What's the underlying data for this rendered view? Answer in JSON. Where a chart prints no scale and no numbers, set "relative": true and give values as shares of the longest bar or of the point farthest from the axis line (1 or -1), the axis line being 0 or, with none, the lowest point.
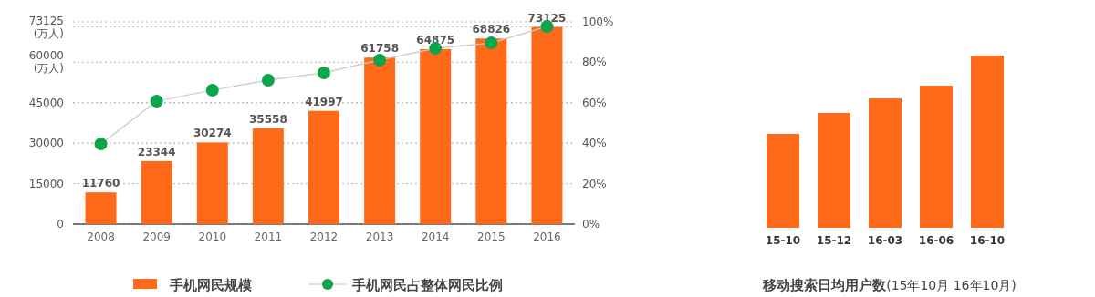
{
  "chart_data": [
    {
      "type": "bar",
      "categories": [
        "2008",
        "2009",
        "2010",
        "2011",
        "2012",
        "2013",
        "2014",
        "2015",
        "2016"
      ],
      "series": [
        {
          "name": "手机网民规模",
          "color": "#ff6a1a",
          "values": [
            11760,
            23344,
            30274,
            35558,
            41997,
            61758,
            64875,
            68826,
            73125
          ],
          "value_labels": [
            "11760",
            "23344",
            "30274",
            "35558",
            "41997",
            "61758",
            "64875",
            "68826",
            "73125"
          ]
        },
        {
          "name": "手机网民占整体网民比例",
          "type": "line",
          "axis": "y2",
          "color": "#0ca54a",
          "values": [
            39.6,
            60.8,
            66.2,
            71.2,
            74.8,
            81.1,
            86.9,
            89.6,
            97.7
          ]
        }
      ],
      "ylim": [
        0,
        75000
      ],
      "yticks": [
        0,
        15000,
        30000,
        45000,
        {
          "value": 60000,
          "label": "60000\n(万人)"
        },
        {
          "value": 73125,
          "label": "73125\n(万人)"
        }
      ],
      "y2lim": [
        0,
        100
      ],
      "y2ticks": [
        {
          "value": 0,
          "label": "0%"
        },
        {
          "value": 20,
          "label": "20%"
        },
        {
          "value": 40,
          "label": "40%"
        },
        {
          "value": 60,
          "label": "60%"
        },
        {
          "value": 80,
          "label": "80%"
        },
        {
          "value": 100,
          "label": "100%"
        }
      ],
      "grid": "y",
      "legend": "bottom",
      "marker": "circle"
    },
    {
      "type": "bar",
      "relative": true,
      "title": "移动搜索日均用户数",
      "subtitle": "(15年10月 16年10月)",
      "categories": [
        "15-10",
        "15-12",
        "16-03",
        "16-06",
        "16-10"
      ],
      "color": "#ff6a1a",
      "values": [
        0.545,
        0.667,
        0.751,
        0.825,
        1
      ]
    }
  ]
}
